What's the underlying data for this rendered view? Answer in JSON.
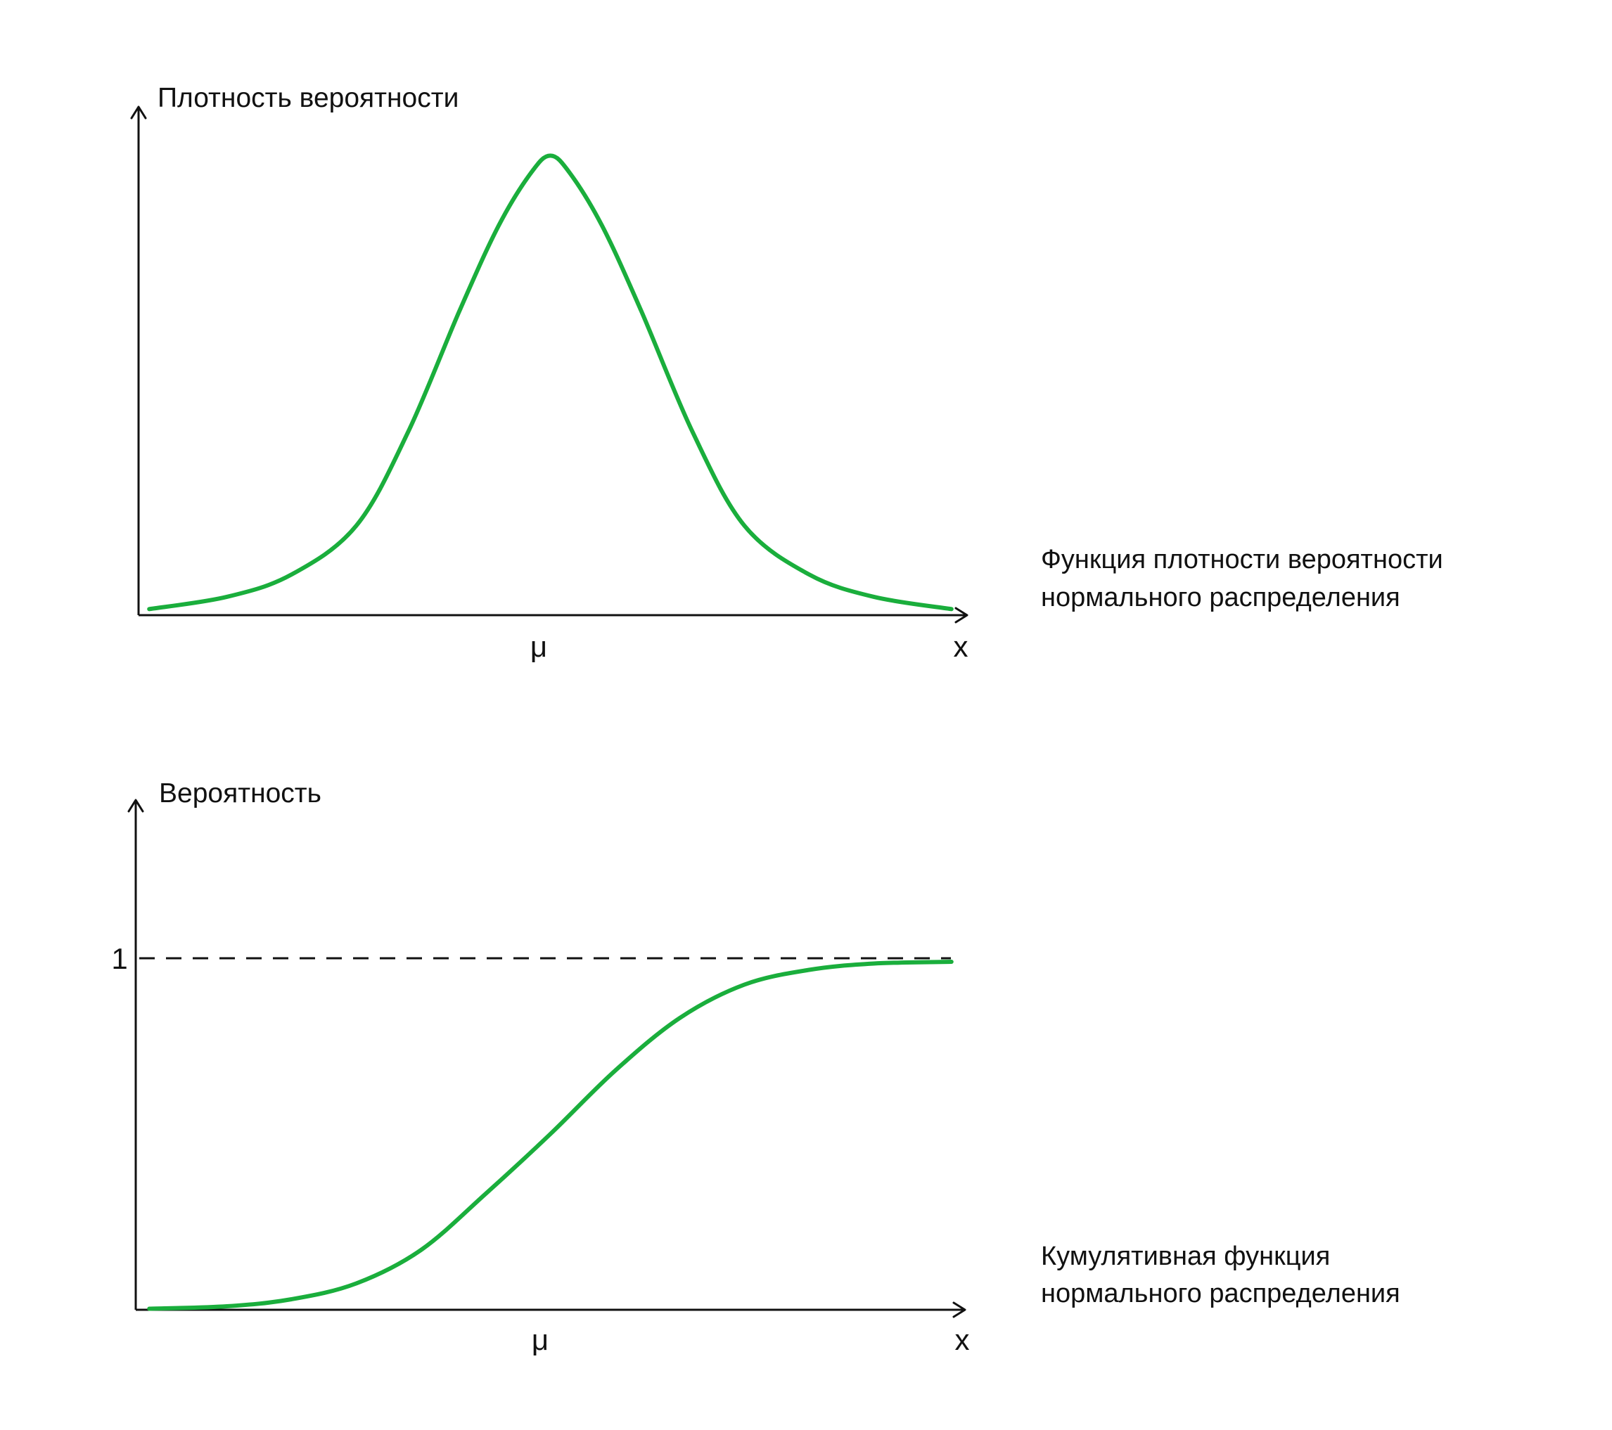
{
  "colors": {
    "curve": "#1aae3c",
    "axis": "#111111",
    "background": "#ffffff"
  },
  "chart_data": [
    {
      "type": "line",
      "title": "Функция плотности вероятности нормального распределения",
      "title_lines": [
        "Функция плотности вероятности",
        "нормального распределения"
      ],
      "ylabel": "Плотность вероятности",
      "xlabel": "x",
      "x_tick_labels": [
        {
          "x": 0,
          "label": "μ"
        }
      ],
      "xlim": [
        -3.15,
        3.15
      ],
      "ylim": [
        0,
        0.5
      ],
      "grid": false,
      "series": [
        {
          "x": [
            -3.1,
            -2.5,
            -2,
            -1.5,
            -1.1,
            -0.7,
            -0.4,
            -0.15,
            0,
            0.15,
            0.4,
            0.7,
            1.1,
            1.5,
            2,
            2.5,
            3.1
          ],
          "values": [
            0.006,
            0.018,
            0.04,
            0.088,
            0.18,
            0.3,
            0.383,
            0.435,
            0.452,
            0.435,
            0.383,
            0.3,
            0.18,
            0.088,
            0.04,
            0.018,
            0.006
          ]
        }
      ]
    },
    {
      "type": "line",
      "title": "Кумулятивная функция нормального распределения",
      "title_lines": [
        "Кумулятивная функция",
        "нормального распределения"
      ],
      "ylabel": "Вероятность",
      "xlabel": "x",
      "x_tick_labels": [
        {
          "x": 0,
          "label": "μ"
        }
      ],
      "y_tick_labels": [
        {
          "y": 1,
          "label": "1"
        }
      ],
      "reference_line": {
        "y": 1,
        "style": "dashed"
      },
      "xlim": [
        -3.15,
        3.15
      ],
      "ylim": [
        0,
        1.45
      ],
      "grid": false,
      "series": [
        {
          "x": [
            -3.1,
            -2.5,
            -2,
            -1.5,
            -1,
            -0.5,
            0,
            0.5,
            1,
            1.5,
            2,
            2.5,
            3.1
          ],
          "values": [
            0.003,
            0.01,
            0.03,
            0.075,
            0.17,
            0.33,
            0.5,
            0.68,
            0.83,
            0.925,
            0.967,
            0.985,
            0.99
          ]
        }
      ]
    }
  ]
}
